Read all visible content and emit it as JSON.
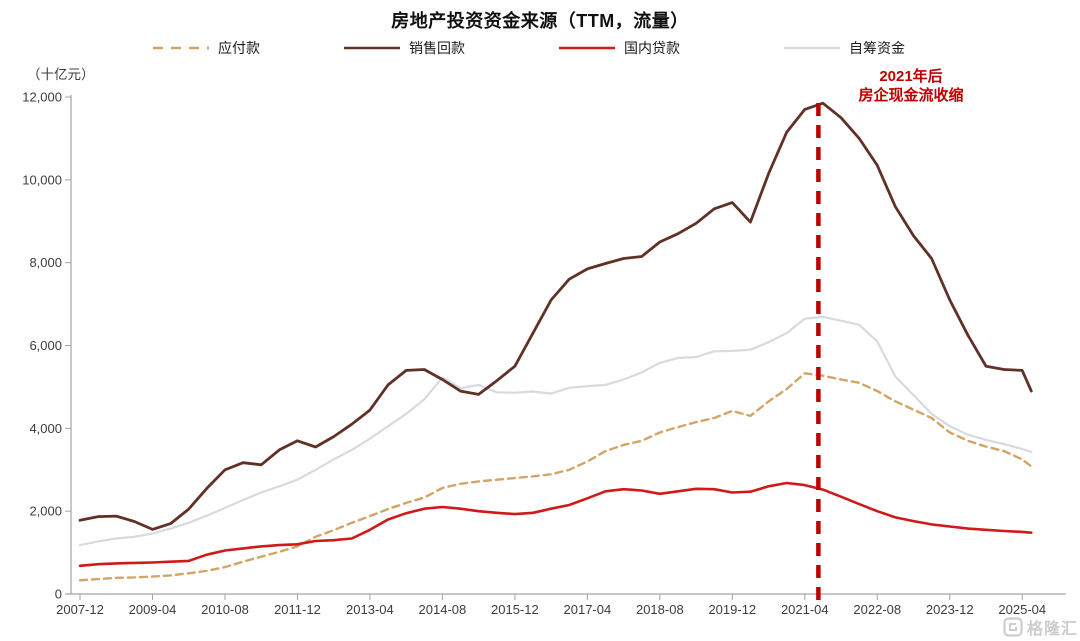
{
  "page": {
    "title": "房地产投资资金来源（TTM，流量）",
    "unit_label": "（十亿元）"
  },
  "legend": [
    {
      "label": "应付款",
      "color": "#d2a566",
      "dashed": true
    },
    {
      "label": "销售回款",
      "color": "#603126",
      "dashed": false
    },
    {
      "label": "国内贷款",
      "color": "#d11919",
      "dashed": false
    },
    {
      "label": "自筹资金",
      "color": "#d7dae0",
      "dashed": false
    }
  ],
  "annotation": {
    "line1": "2021年后",
    "line2": "房企现金流收缩",
    "color": "#c00000"
  },
  "watermark": {
    "text": "格隆汇"
  },
  "chart_data": {
    "type": "line",
    "title": "房地产投资资金来源（TTM，流量）",
    "xlabel": "",
    "ylabel": "（十亿元）",
    "grid": false,
    "legend_position": "top",
    "ylim": [
      0,
      12000
    ],
    "y_tick_values": [
      0,
      2000,
      4000,
      6000,
      8000,
      10000,
      12000
    ],
    "y_tick_labels": [
      "0",
      "2,000",
      "4,000",
      "6,000",
      "8,000",
      "10,000",
      "12,000"
    ],
    "x_tick_labels": [
      "2007-12",
      "2009-04",
      "2010-08",
      "2011-12",
      "2013-04",
      "2014-08",
      "2015-12",
      "2017-04",
      "2018-08",
      "2019-12",
      "2021-04",
      "2022-08",
      "2023-12",
      "2025-04"
    ],
    "vline": {
      "at": "2021-07",
      "color": "#c00000",
      "label": "2021年后 房企现金流收缩"
    },
    "categories": [
      "2007-12",
      "2008-04",
      "2008-08",
      "2008-12",
      "2009-04",
      "2009-08",
      "2009-12",
      "2010-04",
      "2010-08",
      "2010-12",
      "2011-04",
      "2011-08",
      "2011-12",
      "2012-04",
      "2012-08",
      "2012-12",
      "2013-04",
      "2013-08",
      "2013-12",
      "2014-04",
      "2014-08",
      "2014-12",
      "2015-04",
      "2015-08",
      "2015-12",
      "2016-04",
      "2016-08",
      "2016-12",
      "2017-04",
      "2017-08",
      "2017-12",
      "2018-04",
      "2018-08",
      "2018-12",
      "2019-04",
      "2019-08",
      "2019-12",
      "2020-04",
      "2020-08",
      "2020-12",
      "2021-04",
      "2021-08",
      "2021-12",
      "2022-04",
      "2022-08",
      "2022-12",
      "2023-04",
      "2023-08",
      "2023-12",
      "2024-04",
      "2024-08",
      "2024-12",
      "2025-04",
      "2025-06"
    ],
    "series": [
      {
        "key": "self_raised",
        "name": "自筹资金",
        "color": "#d7dae0",
        "width": 2.2,
        "dash": "",
        "values": [
          1180,
          1270,
          1340,
          1380,
          1460,
          1580,
          1720,
          1890,
          2080,
          2270,
          2450,
          2600,
          2760,
          3000,
          3250,
          3480,
          3750,
          4050,
          4350,
          4700,
          5230,
          4970,
          5050,
          4870,
          4860,
          4890,
          4840,
          4980,
          5020,
          5050,
          5180,
          5350,
          5580,
          5700,
          5720,
          5860,
          5870,
          5900,
          6080,
          6300,
          6650,
          6690,
          6600,
          6500,
          6100,
          5250,
          4800,
          4350,
          4050,
          3850,
          3720,
          3620,
          3500,
          3430
        ]
      },
      {
        "key": "payables",
        "name": "应付款",
        "color": "#d2a566",
        "width": 2.4,
        "dash": "7 5",
        "values": [
          330,
          360,
          390,
          400,
          420,
          450,
          500,
          560,
          650,
          780,
          900,
          1020,
          1150,
          1380,
          1540,
          1720,
          1880,
          2050,
          2200,
          2330,
          2560,
          2660,
          2720,
          2760,
          2800,
          2840,
          2890,
          3000,
          3200,
          3450,
          3600,
          3700,
          3900,
          4030,
          4150,
          4250,
          4420,
          4300,
          4650,
          4950,
          5330,
          5270,
          5180,
          5100,
          4900,
          4650,
          4450,
          4250,
          3900,
          3700,
          3560,
          3450,
          3250,
          3080
        ]
      },
      {
        "key": "domestic_loans",
        "name": "国内贷款",
        "color": "#d11919",
        "width": 2.6,
        "dash": "",
        "values": [
          680,
          720,
          740,
          750,
          760,
          780,
          800,
          950,
          1050,
          1100,
          1150,
          1180,
          1200,
          1280,
          1300,
          1340,
          1550,
          1800,
          1950,
          2060,
          2100,
          2060,
          2000,
          1960,
          1930,
          1960,
          2060,
          2150,
          2310,
          2480,
          2530,
          2500,
          2420,
          2480,
          2540,
          2530,
          2450,
          2470,
          2600,
          2680,
          2630,
          2520,
          2350,
          2170,
          2000,
          1850,
          1760,
          1680,
          1630,
          1580,
          1550,
          1520,
          1500,
          1480
        ]
      },
      {
        "key": "sales_receipts",
        "name": "销售回款",
        "color": "#603126",
        "width": 2.8,
        "dash": "",
        "values": [
          1780,
          1870,
          1880,
          1750,
          1560,
          1700,
          2050,
          2550,
          3000,
          3170,
          3120,
          3480,
          3700,
          3550,
          3800,
          4100,
          4440,
          5050,
          5400,
          5420,
          5180,
          4900,
          4820,
          5150,
          5500,
          6300,
          7100,
          7600,
          7850,
          7980,
          8100,
          8150,
          8500,
          8700,
          8950,
          9300,
          9450,
          8980,
          10150,
          11150,
          11700,
          11850,
          11500,
          11000,
          10350,
          9350,
          8650,
          8100,
          7100,
          6250,
          5500,
          5420,
          5400,
          4900
        ]
      }
    ]
  }
}
